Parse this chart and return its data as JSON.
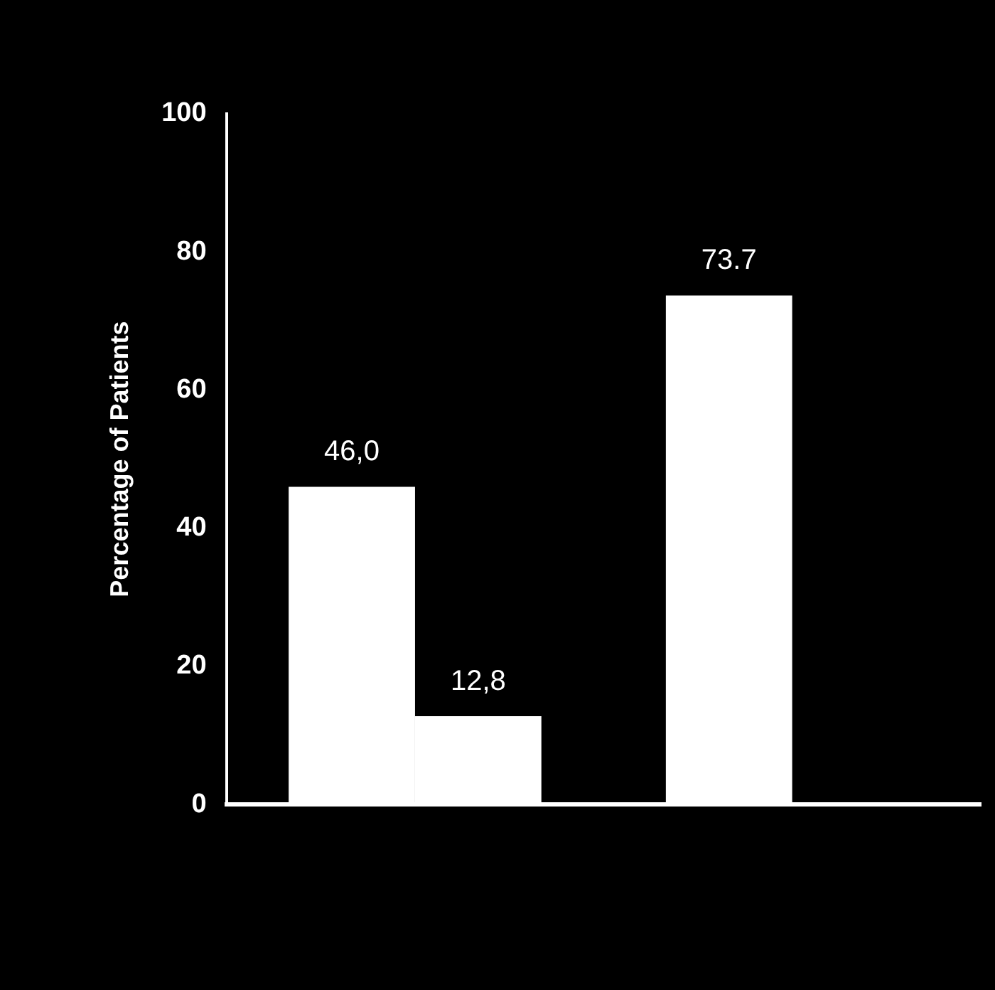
{
  "chart_data": {
    "type": "bar",
    "ylabel": "Percentage of Patients",
    "categories": [
      null,
      null
    ],
    "series": [
      {
        "color": "#ffffff",
        "values": [
          46.0,
          73.7
        ],
        "value_labels": [
          "46,0",
          "73.7"
        ]
      },
      {
        "color": "#ffffff",
        "values": [
          12.8,
          null
        ],
        "value_labels": [
          "12,8",
          null
        ]
      }
    ],
    "ylim": [
      0,
      100
    ],
    "yticks": [
      0,
      20,
      40,
      60,
      80,
      100
    ],
    "grid": false,
    "legend": false
  }
}
